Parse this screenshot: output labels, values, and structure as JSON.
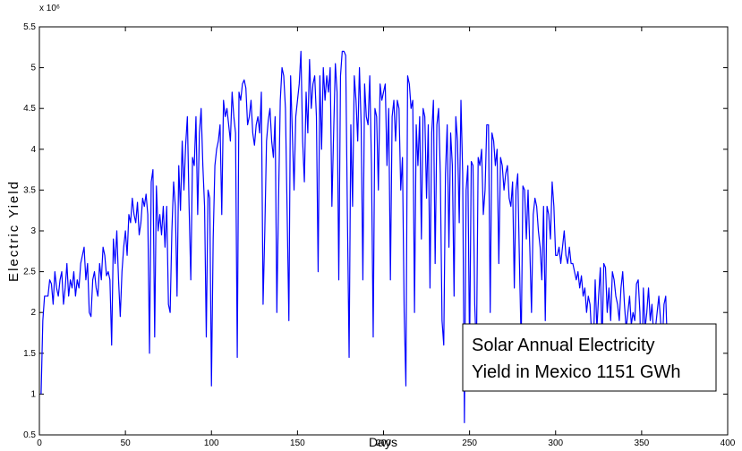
{
  "chart_data": {
    "type": "line",
    "xlabel": "Days",
    "ylabel": "Electric Yield",
    "y_multiplier": "x 10⁶",
    "annotation": [
      "Solar Annual Electricity",
      "Yield in Mexico 1151 GWh"
    ],
    "color": "#0000ff",
    "xlim": [
      0,
      400
    ],
    "xticks": [
      0,
      50,
      100,
      150,
      200,
      250,
      300,
      350,
      400
    ],
    "ylim": [
      0.5,
      5.5
    ],
    "yticks": [
      0.5,
      1,
      1.5,
      2,
      2.5,
      3,
      3.5,
      4,
      4.5,
      5,
      5.5
    ],
    "x": [
      1,
      2,
      3,
      4,
      5,
      6,
      7,
      8,
      9,
      10,
      11,
      12,
      13,
      14,
      15,
      16,
      17,
      18,
      19,
      20,
      21,
      22,
      23,
      24,
      25,
      26,
      27,
      28,
      29,
      30,
      31,
      32,
      33,
      34,
      35,
      36,
      37,
      38,
      39,
      40,
      41,
      42,
      43,
      44,
      45,
      46,
      47,
      48,
      49,
      50,
      51,
      52,
      53,
      54,
      55,
      56,
      57,
      58,
      59,
      60,
      61,
      62,
      63,
      64,
      65,
      66,
      67,
      68,
      69,
      70,
      71,
      72,
      73,
      74,
      75,
      76,
      77,
      78,
      79,
      80,
      81,
      82,
      83,
      84,
      85,
      86,
      87,
      88,
      89,
      90,
      91,
      92,
      93,
      94,
      95,
      96,
      97,
      98,
      99,
      100,
      101,
      102,
      103,
      104,
      105,
      106,
      107,
      108,
      109,
      110,
      111,
      112,
      113,
      114,
      115,
      116,
      117,
      118,
      119,
      120,
      121,
      122,
      123,
      124,
      125,
      126,
      127,
      128,
      129,
      130,
      131,
      132,
      133,
      134,
      135,
      136,
      137,
      138,
      139,
      140,
      141,
      142,
      143,
      144,
      145,
      146,
      147,
      148,
      149,
      150,
      151,
      152,
      153,
      154,
      155,
      156,
      157,
      158,
      159,
      160,
      161,
      162,
      163,
      164,
      165,
      166,
      167,
      168,
      169,
      170,
      171,
      172,
      173,
      174,
      175,
      176,
      177,
      178,
      179,
      180,
      181,
      182,
      183,
      184,
      185,
      186,
      187,
      188,
      189,
      190,
      191,
      192,
      193,
      194,
      195,
      196,
      197,
      198,
      199,
      200,
      201,
      202,
      203,
      204,
      205,
      206,
      207,
      208,
      209,
      210,
      211,
      212,
      213,
      214,
      215,
      216,
      217,
      218,
      219,
      220,
      221,
      222,
      223,
      224,
      225,
      226,
      227,
      228,
      229,
      230,
      231,
      232,
      233,
      234,
      235,
      236,
      237,
      238,
      239,
      240,
      241,
      242,
      243,
      244,
      245,
      246,
      247,
      248,
      249,
      250,
      251,
      252,
      253,
      254,
      255,
      256,
      257,
      258,
      259,
      260,
      261,
      262,
      263,
      264,
      265,
      266,
      267,
      268,
      269,
      270,
      271,
      272,
      273,
      274,
      275,
      276,
      277,
      278,
      279,
      280,
      281,
      282,
      283,
      284,
      285,
      286,
      287,
      288,
      289,
      290,
      291,
      292,
      293,
      294,
      295,
      296,
      297,
      298,
      299,
      300,
      301,
      302,
      303,
      304,
      305,
      306,
      307,
      308,
      309,
      310,
      311,
      312,
      313,
      314,
      315,
      316,
      317,
      318,
      319,
      320,
      321,
      322,
      323,
      324,
      325,
      326,
      327,
      328,
      329,
      330,
      331,
      332,
      333,
      334,
      335,
      336,
      337,
      338,
      339,
      340,
      341,
      342,
      343,
      344,
      345,
      346,
      347,
      348,
      349,
      350,
      351,
      352,
      353,
      354,
      355,
      356,
      357,
      358,
      359,
      360,
      361,
      362,
      363,
      364,
      365
    ],
    "values": [
      1.0,
      1.9,
      2.2,
      2.2,
      2.2,
      2.4,
      2.35,
      2.1,
      2.5,
      2.3,
      2.2,
      2.4,
      2.5,
      2.1,
      2.3,
      2.6,
      2.2,
      2.4,
      2.3,
      2.5,
      2.2,
      2.4,
      2.3,
      2.6,
      2.7,
      2.8,
      2.4,
      2.6,
      2.0,
      1.95,
      2.4,
      2.5,
      2.3,
      2.2,
      2.6,
      2.4,
      2.8,
      2.7,
      2.45,
      2.5,
      2.4,
      1.6,
      2.9,
      2.6,
      3.0,
      2.4,
      1.95,
      2.5,
      2.8,
      3.0,
      2.7,
      3.2,
      3.1,
      3.4,
      3.2,
      3.1,
      3.35,
      2.95,
      3.1,
      3.4,
      3.3,
      3.45,
      3.2,
      1.5,
      3.6,
      3.75,
      1.7,
      3.55,
      3.0,
      3.2,
      2.95,
      3.3,
      2.8,
      3.3,
      2.1,
      2.0,
      3.0,
      3.6,
      3.3,
      2.2,
      3.8,
      3.25,
      4.1,
      3.5,
      4.05,
      4.4,
      3.3,
      2.4,
      3.9,
      3.8,
      4.4,
      3.2,
      4.2,
      4.5,
      3.8,
      3.3,
      1.7,
      3.5,
      3.4,
      1.1,
      2.9,
      3.8,
      4.0,
      4.1,
      4.3,
      3.2,
      4.6,
      4.4,
      4.5,
      4.3,
      4.1,
      4.7,
      4.4,
      4.2,
      1.45,
      4.7,
      4.6,
      4.8,
      4.85,
      4.75,
      4.3,
      4.4,
      4.6,
      4.2,
      4.05,
      4.3,
      4.4,
      4.2,
      4.7,
      2.1,
      3.0,
      4.1,
      4.35,
      4.5,
      4.1,
      3.9,
      4.4,
      2.0,
      3.4,
      4.6,
      5.0,
      4.9,
      4.5,
      3.2,
      1.9,
      4.9,
      4.2,
      3.5,
      4.4,
      4.6,
      4.8,
      5.2,
      4.1,
      3.6,
      4.7,
      4.2,
      5.1,
      4.5,
      4.8,
      4.9,
      4.4,
      2.5,
      4.9,
      4.0,
      5.0,
      4.6,
      4.9,
      4.7,
      5.0,
      3.3,
      4.2,
      5.05,
      4.7,
      2.4,
      4.9,
      5.2,
      5.2,
      5.15,
      3.2,
      1.45,
      4.3,
      3.3,
      4.9,
      4.6,
      4.1,
      5.0,
      4.3,
      2.4,
      4.8,
      4.4,
      4.3,
      4.9,
      3.8,
      1.7,
      4.5,
      4.4,
      3.5,
      4.8,
      4.6,
      4.7,
      4.8,
      3.8,
      4.5,
      2.4,
      4.4,
      4.6,
      4.1,
      4.6,
      4.5,
      3.5,
      3.9,
      2.0,
      1.1,
      4.9,
      4.8,
      4.5,
      4.6,
      2.0,
      4.3,
      3.8,
      4.4,
      2.9,
      4.5,
      4.4,
      3.4,
      4.3,
      2.3,
      4.2,
      4.6,
      2.6,
      4.3,
      4.5,
      3.7,
      1.9,
      1.6,
      3.7,
      4.3,
      2.8,
      4.2,
      3.8,
      2.2,
      4.4,
      4.1,
      3.1,
      4.6,
      3.7,
      0.65,
      3.5,
      3.8,
      1.5,
      3.85,
      3.8,
      2.1,
      1.5,
      3.9,
      3.8,
      4.0,
      3.2,
      3.5,
      4.3,
      4.3,
      2.0,
      4.2,
      4.1,
      3.8,
      4.0,
      2.6,
      3.9,
      3.8,
      3.5,
      3.7,
      3.8,
      3.4,
      3.3,
      3.6,
      2.3,
      3.5,
      3.7,
      2.6,
      1.6,
      3.55,
      3.5,
      2.9,
      3.5,
      2.8,
      2.0,
      3.2,
      3.4,
      3.3,
      3.0,
      2.8,
      2.4,
      3.3,
      1.9,
      3.3,
      3.2,
      2.9,
      3.6,
      3.3,
      2.7,
      2.7,
      2.8,
      2.6,
      2.8,
      3.0,
      2.7,
      2.6,
      2.8,
      2.6,
      2.6,
      2.5,
      2.4,
      2.5,
      2.3,
      2.45,
      2.2,
      2.3,
      2.0,
      2.2,
      2.1,
      1.7,
      1.6,
      2.4,
      1.8,
      2.2,
      2.55,
      1.6,
      2.6,
      2.55,
      2.0,
      2.3,
      1.9,
      2.5,
      2.4,
      2.2,
      2.1,
      1.9,
      2.3,
      2.5,
      2.1,
      1.8,
      2.0,
      2.2,
      1.85,
      2.0,
      1.9,
      2.35,
      2.4,
      2.0,
      1.05,
      2.3,
      1.8,
      2.0,
      2.3,
      1.9,
      2.1,
      1.7,
      1.8,
      2.0,
      2.2,
      1.9,
      1.6,
      2.1,
      2.2,
      1.55
    ]
  }
}
